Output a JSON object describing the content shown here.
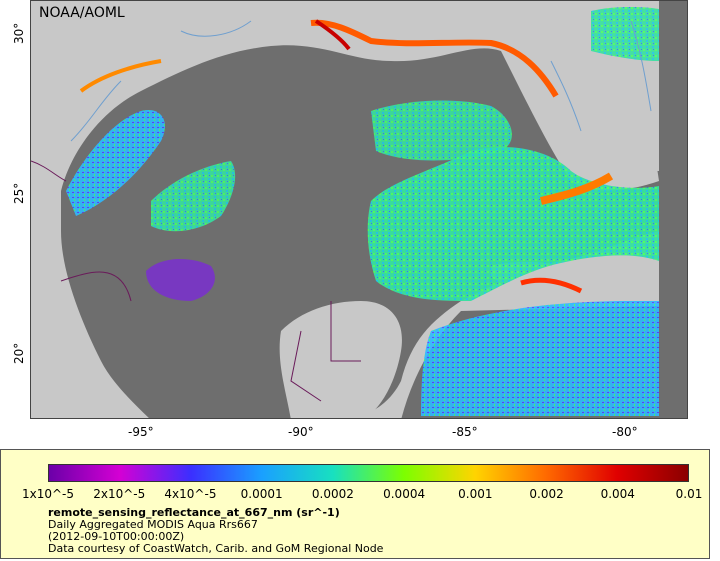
{
  "map": {
    "credit": "NOAA/AOML",
    "lon_labels": [
      "-95°",
      "-90°",
      "-85°",
      "-80°"
    ],
    "lat_labels": [
      "30°",
      "25°",
      "20°"
    ],
    "colors": {
      "land": "#c8c8c8",
      "no_data": "#6e6e6e",
      "border": "#6a1b5a",
      "rivers": "#6f9fcf"
    }
  },
  "legend": {
    "colorbar_labels": [
      "1x10^-5",
      "2x10^-5",
      "4x10^-5",
      "0.0001",
      "0.0002",
      "0.0004",
      "0.001",
      "0.002",
      "0.004",
      "0.01"
    ],
    "colorbar_colors": [
      "#6b00a8",
      "#d400d4",
      "#3b2fff",
      "#1aa0ff",
      "#18e0c0",
      "#7cff00",
      "#ffd400",
      "#ff6a00",
      "#e00000",
      "#8b0000"
    ],
    "variable": "remote_sensing_reflectance_at_667_nm (sr^-1)",
    "product": "Daily Aggregated MODIS Aqua Rrs667",
    "date": "(2012-09-10T00:00:00Z)",
    "courtesy": "Data courtesy of CoastWatch, Carib. and GoM Regional Node"
  }
}
